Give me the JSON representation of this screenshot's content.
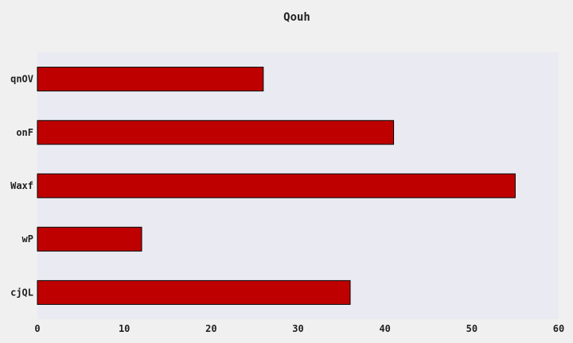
{
  "chart_data": {
    "type": "bar",
    "orientation": "horizontal",
    "title": "Qouh",
    "categories": [
      "qnOV",
      "onF",
      "Waxf",
      "wP",
      "cjQL"
    ],
    "values": [
      26,
      41,
      55,
      12,
      36
    ],
    "xlim": [
      0,
      60
    ],
    "xticks": [
      0,
      10,
      20,
      30,
      40,
      50,
      60
    ],
    "xlabel": "",
    "ylabel": "",
    "grid": false,
    "legend": "none",
    "colors": {
      "bar": "#bf0000",
      "bar_edge": "#000000",
      "plot_background": "#eaeaf2",
      "figure_background": "#f0f0f0"
    }
  }
}
